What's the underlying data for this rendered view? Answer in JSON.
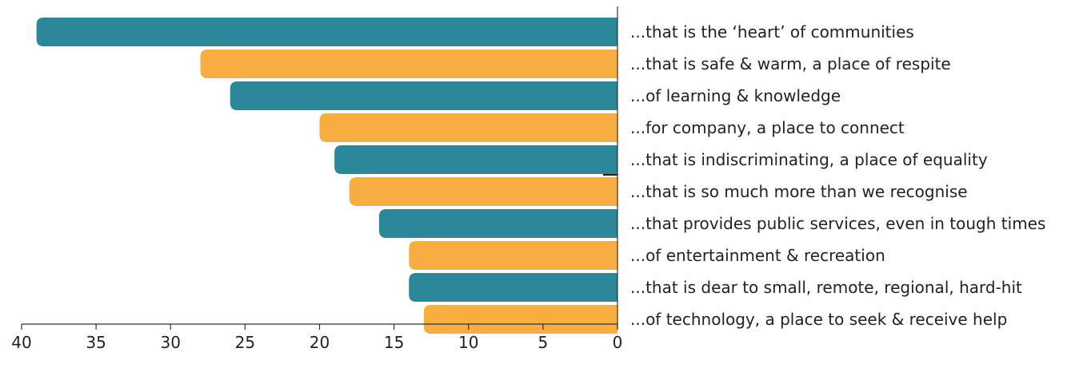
{
  "chart_data": {
    "type": "bar",
    "orientation": "horizontal",
    "x_direction": "reversed",
    "categories": [
      "...that is the ‘heart’ of communities",
      "...that is safe & warm, a place of respite",
      "...of learning & knowledge",
      "...for company, a place to connect",
      "...that is indiscriminating, a place of equality",
      "...that is so much more than we recognise",
      "...that provides public services, even in tough times",
      "...of entertainment & recreation",
      "...that is dear to small, remote, regional, hard-hit",
      "...of technology, a place to seek & receive help"
    ],
    "values": [
      39,
      28,
      26,
      20,
      19,
      18,
      16,
      14,
      14,
      13
    ],
    "xlim": [
      0,
      40
    ],
    "xticks": [
      40,
      35,
      30,
      25,
      20,
      15,
      10,
      5,
      0
    ],
    "bar_colors": [
      "#2a8898",
      "#f8ae40"
    ],
    "title": "",
    "xlabel": "",
    "ylabel": "",
    "grid": false,
    "legend": "none"
  }
}
